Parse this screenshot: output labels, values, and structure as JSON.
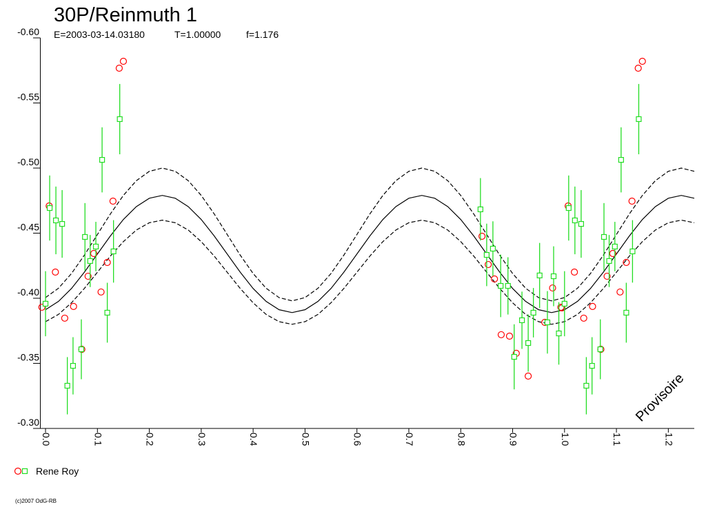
{
  "chart_data": {
    "type": "scatter",
    "title": "30P/Reinmuth 1",
    "subtitle": [
      "E=2003-03-14.03180",
      "T=1.00000",
      "f=1.176"
    ],
    "annotation": "Provisoire",
    "credit": "(c)2007 OdG-RB",
    "xlim": [
      -0.01,
      1.25
    ],
    "ylim": [
      -0.6,
      -0.3
    ],
    "y_reversed": true,
    "xticks": [
      {
        "value": 0,
        "label": "0.0"
      },
      0.1,
      0.2,
      0.3,
      0.4,
      0.5,
      0.6,
      0.7,
      0.8,
      0.9,
      {
        "value": 1,
        "label": "1.0"
      },
      1.1,
      1.2
    ],
    "yticks": [
      {
        "value": -0.6,
        "label": "-0.60"
      },
      -0.55,
      {
        "value": -0.5,
        "label": "-0.50"
      },
      -0.45,
      {
        "value": -0.4,
        "label": "-0.40"
      },
      -0.35,
      {
        "value": -0.3,
        "label": "-0.30"
      }
    ],
    "series": [
      {
        "name": "Rene Roy",
        "color": "#ff0000",
        "marker": "circle",
        "x": [
          -0.007,
          0.007,
          0.019,
          0.037,
          0.054,
          0.07,
          0.082,
          0.093,
          0.107,
          0.119,
          0.13,
          0.142,
          0.15,
          0.841,
          0.853,
          0.865,
          0.878,
          0.894,
          0.907,
          0.93,
          0.962,
          0.977,
          0.995,
          0.993,
          1.007,
          1.019,
          1.037,
          1.054,
          1.07,
          1.082,
          1.093,
          1.107,
          1.119,
          1.13,
          1.142,
          1.15
        ],
        "values": [
          -0.3931,
          -0.4709,
          -0.4201,
          -0.3847,
          -0.3937,
          -0.3608,
          -0.4169,
          -0.4344,
          -0.4048,
          -0.4275,
          -0.4746,
          -0.5767,
          -0.582,
          -0.4476,
          -0.4259,
          -0.4148,
          -0.372,
          -0.3709,
          -0.3577,
          -0.3402,
          -0.3815,
          -0.4079,
          -0.3926,
          -0.3931,
          -0.4709,
          -0.4201,
          -0.3847,
          -0.3937,
          -0.3608,
          -0.4169,
          -0.4344,
          -0.4048,
          -0.4275,
          -0.4746,
          -0.5767,
          -0.582
        ]
      },
      {
        "color": "#22dd22",
        "marker": "square",
        "x": [
          0.0,
          0.008,
          0.02,
          0.032,
          0.042,
          0.053,
          0.069,
          0.076,
          0.086,
          0.097,
          0.109,
          0.119,
          0.131,
          0.143,
          0.838,
          0.85,
          0.862,
          0.877,
          0.891,
          0.903,
          0.918,
          0.93,
          0.94,
          0.952,
          0.967,
          0.979,
          0.989,
          1.0,
          1.008,
          1.02,
          1.032,
          1.042,
          1.053,
          1.069,
          1.076,
          1.086,
          1.097,
          1.109,
          1.119,
          1.131,
          1.143
        ],
        "values": [
          -0.3958,
          -0.4693,
          -0.4598,
          -0.4571,
          -0.3328,
          -0.3481,
          -0.3608,
          -0.4471,
          -0.4286,
          -0.4397,
          -0.5063,
          -0.3889,
          -0.436,
          -0.5376,
          -0.4683,
          -0.4333,
          -0.4381,
          -0.4095,
          -0.4095,
          -0.355,
          -0.3831,
          -0.3656,
          -0.3889,
          -0.4175,
          -0.3815,
          -0.4169,
          -0.373,
          -0.3958,
          -0.4693,
          -0.4598,
          -0.4571,
          -0.3328,
          -0.3481,
          -0.3608,
          -0.4471,
          -0.4286,
          -0.4397,
          -0.5063,
          -0.3889,
          -0.436,
          -0.5376
        ],
        "errors": [
          0.025,
          0.025,
          0.026,
          0.026,
          0.022,
          0.022,
          0.023,
          0.026,
          0.02,
          0.019,
          0.025,
          0.023,
          0.024,
          0.027,
          0.024,
          0.024,
          0.021,
          0.024,
          0.022,
          0.025,
          0.022,
          0.022,
          0.019,
          0.025,
          0.024,
          0.023,
          0.024,
          0.025,
          0.025,
          0.026,
          0.026,
          0.022,
          0.022,
          0.023,
          0.026,
          0.02,
          0.019,
          0.025,
          0.023,
          0.024,
          0.027
        ]
      }
    ],
    "x": [
      0,
      0.025,
      0.05,
      0.075,
      0.1,
      0.125,
      0.15,
      0.175,
      0.2,
      0.225,
      0.25,
      0.275,
      0.3,
      0.325,
      0.35,
      0.375,
      0.4,
      0.425,
      0.45,
      0.475,
      0.5,
      0.525,
      0.55,
      0.575,
      0.6,
      0.625,
      0.65,
      0.675,
      0.7,
      0.725,
      0.75,
      0.775,
      0.8,
      0.825,
      0.85,
      0.875,
      0.9,
      0.925,
      0.95,
      0.975,
      1.0,
      1.025,
      1.05,
      1.075,
      1.1,
      1.125,
      1.15,
      1.175,
      1.2,
      1.225,
      1.25
    ],
    "curves": [
      {
        "style": "solid",
        "color": "#000000",
        "values": [
          -0.3912,
          -0.3976,
          -0.4075,
          -0.4201,
          -0.434,
          -0.4479,
          -0.4605,
          -0.4704,
          -0.4768,
          -0.479,
          -0.4768,
          -0.4704,
          -0.4605,
          -0.4479,
          -0.434,
          -0.4201,
          -0.4075,
          -0.3976,
          -0.3912,
          -0.389,
          -0.3912,
          -0.3976,
          -0.4075,
          -0.4201,
          -0.434,
          -0.4479,
          -0.4605,
          -0.4704,
          -0.4768,
          -0.479,
          -0.4768,
          -0.4704,
          -0.4605,
          -0.4479,
          -0.434,
          -0.4201,
          -0.4075,
          -0.3976,
          -0.3912,
          -0.389,
          -0.3912,
          -0.3976,
          -0.4075,
          -0.4201,
          -0.434,
          -0.4479,
          -0.4605,
          -0.4704,
          -0.4768,
          -0.479,
          -0.4768
        ]
      },
      {
        "style": "dashed",
        "color": "#000000",
        "values": [
          -0.4005,
          -0.4077,
          -0.419,
          -0.4332,
          -0.449,
          -0.4648,
          -0.479,
          -0.4903,
          -0.4975,
          -0.5,
          -0.4975,
          -0.4903,
          -0.479,
          -0.4648,
          -0.449,
          -0.4332,
          -0.419,
          -0.4077,
          -0.4005,
          -0.398,
          -0.4005,
          -0.4077,
          -0.419,
          -0.4332,
          -0.449,
          -0.4648,
          -0.479,
          -0.4903,
          -0.4975,
          -0.5,
          -0.4975,
          -0.4903,
          -0.479,
          -0.4648,
          -0.449,
          -0.4332,
          -0.419,
          -0.4077,
          -0.4005,
          -0.398,
          -0.4005,
          -0.4077,
          -0.419,
          -0.4332,
          -0.449,
          -0.4648,
          -0.479,
          -0.4903,
          -0.4975,
          -0.5,
          -0.4975
        ]
      },
      {
        "style": "dashed",
        "color": "#000000",
        "values": [
          -0.382,
          -0.3876,
          -0.3965,
          -0.4076,
          -0.42,
          -0.4324,
          -0.4435,
          -0.4524,
          -0.458,
          -0.46,
          -0.458,
          -0.4524,
          -0.4435,
          -0.4324,
          -0.42,
          -0.4076,
          -0.3965,
          -0.3876,
          -0.382,
          -0.38,
          -0.382,
          -0.3876,
          -0.3965,
          -0.4076,
          -0.42,
          -0.4324,
          -0.4435,
          -0.4524,
          -0.458,
          -0.46,
          -0.458,
          -0.4524,
          -0.4435,
          -0.4324,
          -0.42,
          -0.4076,
          -0.3965,
          -0.3876,
          -0.382,
          -0.38,
          -0.382,
          -0.3876,
          -0.3965,
          -0.4076,
          -0.42,
          -0.4324,
          -0.4435,
          -0.4524,
          -0.458,
          -0.46,
          -0.458
        ]
      }
    ]
  }
}
